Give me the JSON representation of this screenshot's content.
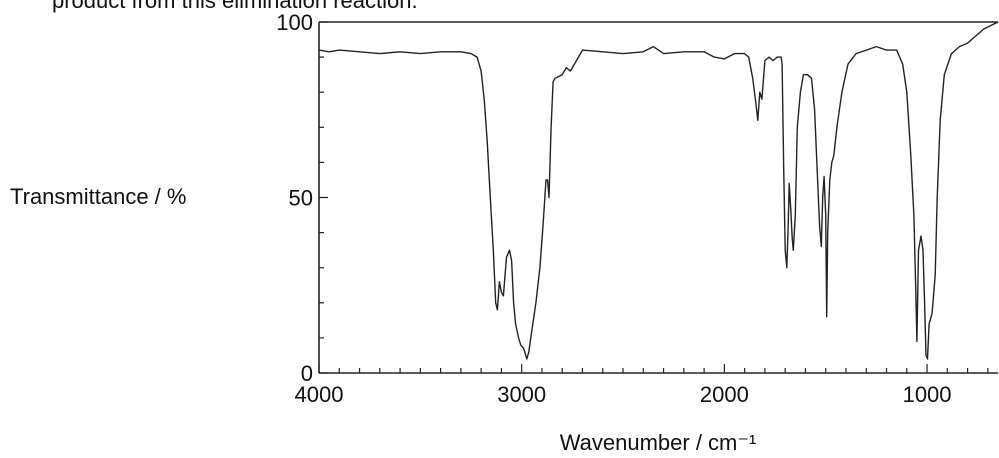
{
  "caption": "product from this elimination reaction.",
  "chart_data": {
    "type": "line",
    "title": "",
    "xlabel": "Wavenumber / cm⁻¹",
    "ylabel": "Transmittance / %",
    "xlim": [
      4000,
      650
    ],
    "ylim": [
      0,
      100
    ],
    "x_reversed": true,
    "x_ticks": [
      4000,
      3000,
      2000,
      1000
    ],
    "x_tick_labels": [
      "4000",
      "3000",
      "2000",
      "1000"
    ],
    "y_ticks": [
      0,
      50,
      100
    ],
    "y_tick_labels": [
      "0",
      "50",
      "100"
    ],
    "grid": false,
    "legend": "none",
    "series": [
      {
        "color": "#222222",
        "points": [
          [
            4000,
            92
          ],
          [
            3950,
            91.5
          ],
          [
            3900,
            92
          ],
          [
            3800,
            91.5
          ],
          [
            3700,
            91
          ],
          [
            3600,
            91.5
          ],
          [
            3500,
            91
          ],
          [
            3400,
            91.5
          ],
          [
            3300,
            91.5
          ],
          [
            3250,
            91
          ],
          [
            3220,
            90
          ],
          [
            3200,
            86
          ],
          [
            3185,
            78
          ],
          [
            3170,
            66
          ],
          [
            3155,
            50
          ],
          [
            3140,
            35
          ],
          [
            3128,
            20
          ],
          [
            3120,
            18
          ],
          [
            3110,
            26
          ],
          [
            3100,
            23
          ],
          [
            3090,
            22
          ],
          [
            3075,
            33
          ],
          [
            3060,
            35
          ],
          [
            3050,
            32
          ],
          [
            3040,
            20
          ],
          [
            3030,
            14
          ],
          [
            3015,
            10
          ],
          [
            3005,
            8
          ],
          [
            2990,
            7
          ],
          [
            2975,
            4
          ],
          [
            2965,
            6
          ],
          [
            2950,
            12
          ],
          [
            2930,
            20
          ],
          [
            2910,
            30
          ],
          [
            2895,
            42
          ],
          [
            2880,
            55
          ],
          [
            2872,
            55
          ],
          [
            2865,
            50
          ],
          [
            2855,
            70
          ],
          [
            2845,
            83
          ],
          [
            2835,
            84
          ],
          [
            2800,
            85
          ],
          [
            2780,
            87
          ],
          [
            2760,
            86
          ],
          [
            2740,
            88
          ],
          [
            2700,
            92
          ],
          [
            2600,
            91.5
          ],
          [
            2500,
            91
          ],
          [
            2400,
            91.5
          ],
          [
            2350,
            93
          ],
          [
            2300,
            91
          ],
          [
            2200,
            91.5
          ],
          [
            2100,
            91.5
          ],
          [
            2050,
            90
          ],
          [
            2000,
            89.5
          ],
          [
            1950,
            91
          ],
          [
            1900,
            91
          ],
          [
            1880,
            90
          ],
          [
            1860,
            84
          ],
          [
            1845,
            77
          ],
          [
            1835,
            72
          ],
          [
            1825,
            80
          ],
          [
            1815,
            78
          ],
          [
            1800,
            89
          ],
          [
            1780,
            90
          ],
          [
            1760,
            89
          ],
          [
            1740,
            90
          ],
          [
            1720,
            90
          ],
          [
            1715,
            88
          ],
          [
            1708,
            60
          ],
          [
            1700,
            35
          ],
          [
            1692,
            30
          ],
          [
            1685,
            42
          ],
          [
            1680,
            54
          ],
          [
            1672,
            46
          ],
          [
            1665,
            38
          ],
          [
            1660,
            35
          ],
          [
            1650,
            45
          ],
          [
            1640,
            70
          ],
          [
            1625,
            80
          ],
          [
            1610,
            85
          ],
          [
            1590,
            85
          ],
          [
            1570,
            84
          ],
          [
            1555,
            75
          ],
          [
            1540,
            55
          ],
          [
            1530,
            42
          ],
          [
            1522,
            36
          ],
          [
            1515,
            50
          ],
          [
            1508,
            56
          ],
          [
            1500,
            45
          ],
          [
            1495,
            16
          ],
          [
            1490,
            40
          ],
          [
            1480,
            55
          ],
          [
            1470,
            60
          ],
          [
            1460,
            62
          ],
          [
            1445,
            70
          ],
          [
            1420,
            80
          ],
          [
            1390,
            88
          ],
          [
            1350,
            91
          ],
          [
            1300,
            92
          ],
          [
            1250,
            93
          ],
          [
            1200,
            92
          ],
          [
            1150,
            92
          ],
          [
            1120,
            88
          ],
          [
            1100,
            80
          ],
          [
            1080,
            62
          ],
          [
            1065,
            45
          ],
          [
            1055,
            22
          ],
          [
            1050,
            9
          ],
          [
            1042,
            35
          ],
          [
            1030,
            39
          ],
          [
            1020,
            35
          ],
          [
            1012,
            20
          ],
          [
            1005,
            5
          ],
          [
            998,
            4
          ],
          [
            990,
            14
          ],
          [
            975,
            17
          ],
          [
            960,
            28
          ],
          [
            950,
            50
          ],
          [
            935,
            72
          ],
          [
            915,
            85
          ],
          [
            880,
            91
          ],
          [
            840,
            93
          ],
          [
            800,
            94
          ],
          [
            760,
            96
          ],
          [
            720,
            98
          ],
          [
            650,
            100
          ]
        ]
      }
    ]
  }
}
